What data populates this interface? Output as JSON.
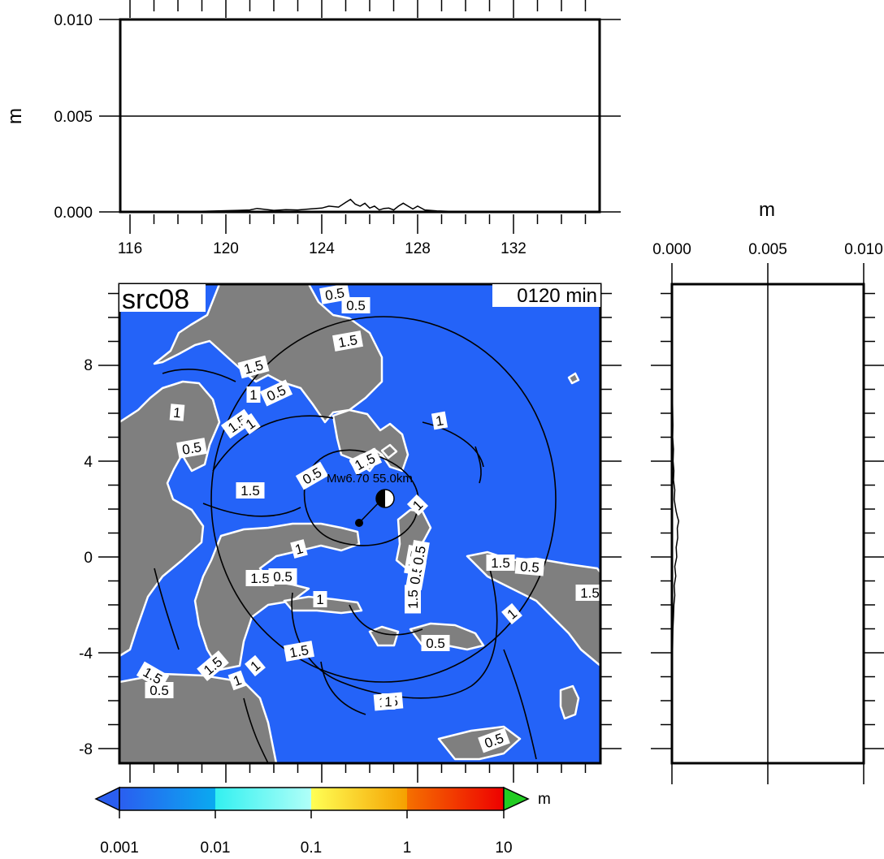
{
  "top_panel": {
    "unit": "m",
    "y_ticks": [
      "0.010",
      "0.005",
      "0.000"
    ],
    "x_ticks": [
      "116",
      "120",
      "124",
      "128",
      "132"
    ]
  },
  "side_panel": {
    "unit": "m",
    "x_ticks": [
      "0.000",
      "0.005",
      "0.010"
    ]
  },
  "map": {
    "source_label": "src08",
    "time_label": "0120 min",
    "y_ticks": [
      "8",
      "4",
      "0",
      "-4",
      "-8"
    ],
    "epicenter_label": "Mw6.70 55.0km",
    "contour_labels": [
      "0.5",
      "0.5",
      "1.5",
      "1.5",
      "1",
      "0.5",
      "1",
      "0.5",
      "1.5",
      "1",
      "1",
      "1.5",
      "0.5",
      "1.5",
      "1",
      "1",
      "1.5",
      "0.5",
      "1.5",
      "0.5",
      "1.5",
      "0.5",
      "1",
      "1.5",
      "1",
      "0.5",
      "1.5",
      "0.5",
      "1",
      "1.5",
      "1.5",
      "1",
      "1.5",
      "0.5",
      "1.5",
      "1",
      "0.5",
      "1"
    ],
    "colors": {
      "ocean": "#2463f8",
      "land": "#7f7f7f",
      "coast": "#ffffff",
      "contour": "#000000"
    }
  },
  "colorbar": {
    "unit": "m",
    "ticks": [
      "0.001",
      "0.01",
      "0.1",
      "1",
      "10"
    ],
    "colors": {
      "under": "#2a5ef0",
      "over": "#22cc22",
      "segments": [
        [
          "#2a5ef0",
          "#0aaaf0"
        ],
        [
          "#33f0f0",
          "#b0fff8"
        ],
        [
          "#ffff55",
          "#f5a000"
        ],
        [
          "#f57000",
          "#ee0000"
        ]
      ]
    }
  },
  "chart_data": [
    {
      "type": "line",
      "title": "",
      "xlabel": "",
      "ylabel": "m",
      "xlim": [
        115.4,
        135.4
      ],
      "ylim": [
        0,
        0.01
      ],
      "grid": "horizontal line at 0.005",
      "series": [
        {
          "x": [
            115.4,
            117,
            119,
            120.5,
            121,
            121.3,
            122,
            122.5,
            123,
            123.5,
            124,
            124.3,
            124.7,
            125,
            125.2,
            125.4,
            125.6,
            125.8,
            126,
            126.2,
            126.4,
            126.6,
            126.8,
            127,
            127.2,
            127.4,
            127.6,
            127.8,
            128,
            128.3,
            128.8,
            130,
            132,
            135.4
          ],
          "y": [
            0,
            0,
            3e-05,
            8e-05,
            0.0001,
            0.00018,
            8e-05,
            0.00012,
            0.0001,
            0.00015,
            0.0002,
            0.0003,
            0.00025,
            0.0005,
            0.00065,
            0.0004,
            0.0003,
            0.00045,
            0.0002,
            0.0003,
            0.0001,
            0.00018,
            0.0002,
            0.0001,
            0.0003,
            0.00045,
            0.0003,
            0.00015,
            0.0003,
            0.0001,
            5e-05,
            0,
            0,
            0
          ]
        }
      ]
    },
    {
      "type": "line",
      "title": "",
      "xlabel": "m",
      "ylabel": "",
      "xlim": [
        0,
        0.01
      ],
      "ylim": [
        -8.5,
        11.5
      ],
      "grid": "vertical line at 0.005",
      "series": [
        {
          "x": [
            0,
            0,
            3e-05,
            5e-05,
            4e-05,
            8e-05,
            6e-05,
            0.0001,
            8e-05,
            0.00015,
            0.00012,
            0.00018,
            0.00022,
            0.00028,
            0.00035,
            0.00028,
            0.0003,
            0.00022,
            0.00025,
            0.00015,
            0.0002,
            0.00012,
            0.00015,
            0.0001,
            8e-05,
            5e-05,
            3e-05,
            0,
            0
          ],
          "y": [
            11.5,
            7.2,
            6.5,
            5.5,
            5.0,
            4.5,
            4.0,
            3.6,
            3.2,
            2.8,
            2.4,
            2.1,
            1.9,
            1.7,
            1.5,
            1.2,
            0.8,
            0.4,
            0.0,
            -0.4,
            -0.8,
            -1.2,
            -1.6,
            -2.0,
            -2.5,
            -3.0,
            -4.0,
            -6.0,
            -8.5
          ]
        }
      ]
    }
  ]
}
